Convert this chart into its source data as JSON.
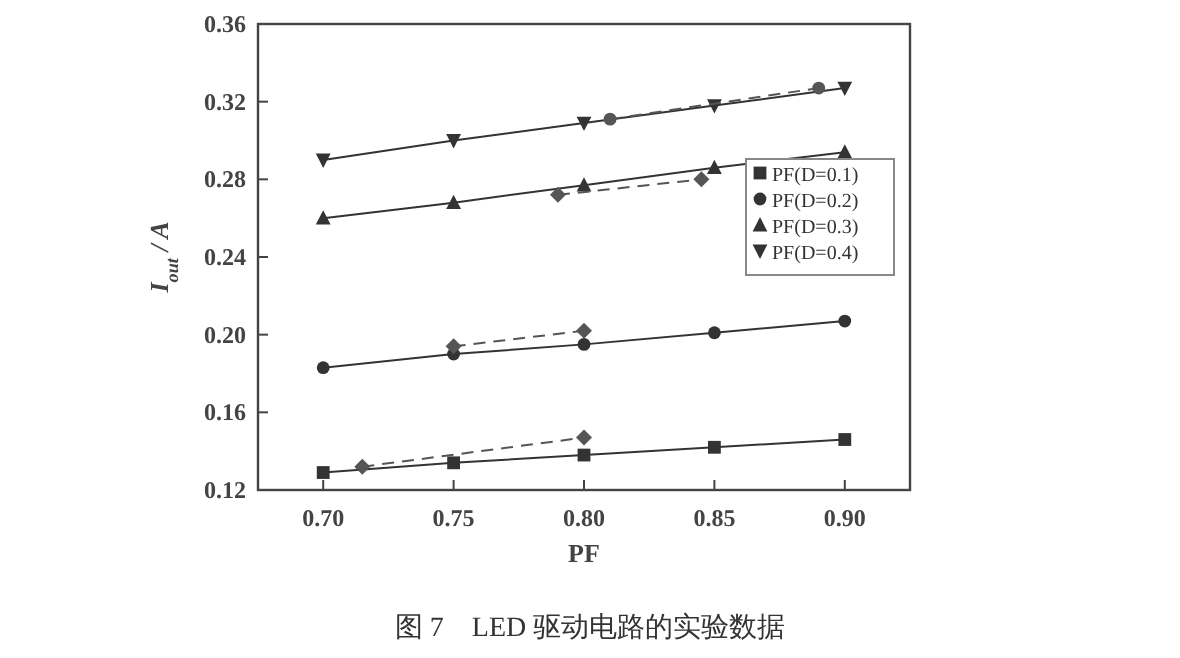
{
  "chart_data": {
    "type": "line",
    "xlabel": "PF",
    "ylabel": "I$_{out}$ / A",
    "annotations": [
      "图 7　LED 驱动电路的实验数据"
    ],
    "xlim": [
      0.675,
      0.925
    ],
    "ylim": [
      0.12,
      0.36
    ],
    "xticks": [
      {
        "value": 0.7,
        "label": "0.70"
      },
      0.75,
      {
        "value": 0.8,
        "label": "0.80"
      },
      0.85,
      {
        "value": 0.9,
        "label": "0.90"
      }
    ],
    "yticks": [
      0.12,
      0.16,
      {
        "value": 0.2,
        "label": "0.20"
      },
      0.24,
      0.28,
      0.32,
      0.36
    ],
    "grid": false,
    "legend": "right",
    "series": [
      {
        "name": "PF(D=0.1)",
        "color": "#333333",
        "marker": "square",
        "line_style": "solid",
        "x": [
          0.7,
          0.75,
          0.8,
          0.85,
          0.9
        ],
        "values": [
          0.129,
          0.134,
          0.138,
          0.142,
          0.146
        ]
      },
      {
        "name": "PF(D=0.2)",
        "color": "#333333",
        "marker": "circle",
        "line_style": "solid",
        "x": [
          0.7,
          0.75,
          0.8,
          0.85,
          0.9
        ],
        "values": [
          0.183,
          0.19,
          0.195,
          0.201,
          0.207
        ]
      },
      {
        "name": "PF(D=0.3)",
        "color": "#333333",
        "marker": "triangle",
        "line_style": "solid",
        "x": [
          0.7,
          0.75,
          0.8,
          0.85,
          0.9
        ],
        "values": [
          0.26,
          0.268,
          0.277,
          0.286,
          0.294
        ]
      },
      {
        "name": "PF(D=0.4)",
        "color": "#333333",
        "marker": "triangle-down",
        "line_style": "solid",
        "x": [
          0.7,
          0.75,
          0.8,
          0.85,
          0.9
        ],
        "values": [
          0.29,
          0.3,
          0.309,
          0.318,
          0.327
        ]
      },
      {
        "color": "#555555",
        "marker": "diamond",
        "line_style": "dashed",
        "x": [
          0.715,
          0.8
        ],
        "values": [
          0.132,
          0.147
        ]
      },
      {
        "color": "#555555",
        "marker": "diamond",
        "line_style": "dashed",
        "x": [
          0.75,
          0.8
        ],
        "values": [
          0.194,
          0.202
        ]
      },
      {
        "color": "#555555",
        "marker": "diamond",
        "line_style": "dashed",
        "x": [
          0.79,
          0.845
        ],
        "values": [
          0.272,
          0.28
        ]
      },
      {
        "color": "#555555",
        "marker": "circle",
        "line_style": "dashed",
        "x": [
          0.81,
          0.89
        ],
        "values": [
          0.311,
          0.327
        ]
      }
    ]
  }
}
